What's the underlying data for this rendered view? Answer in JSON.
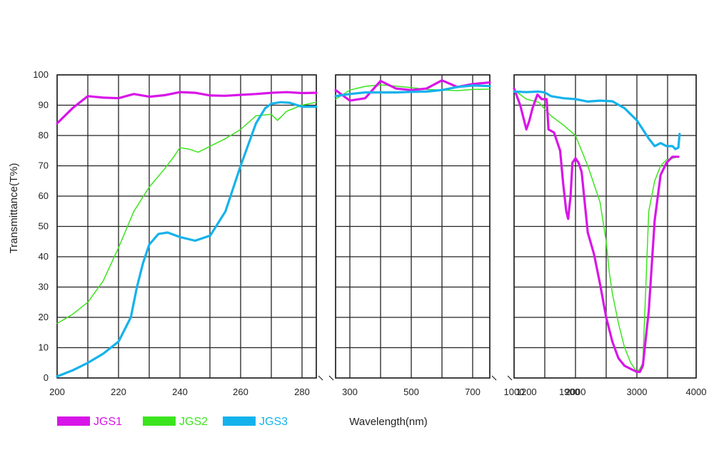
{
  "chart_data": {
    "type": "line",
    "title": "",
    "ylabel": "Transmittance(T%)",
    "xlabel": "Wavelength(nm)",
    "ylim": [
      0,
      100
    ],
    "y_ticks": [
      "0",
      "10",
      "20",
      "30",
      "40",
      "50",
      "60",
      "70",
      "80",
      "90",
      "100"
    ],
    "grid": true,
    "legend_position": "bottom-left",
    "panels": [
      {
        "xlim": [
          200,
          285
        ],
        "x_ticks": [
          200,
          220,
          240,
          260,
          280
        ],
        "x_tick_labels": [
          "200",
          "220",
          "240",
          "260",
          "280"
        ],
        "series": [
          {
            "name": "JGS1",
            "x": [
              200,
              205,
              210,
              215,
              220,
              225,
              230,
              235,
              240,
              245,
              250,
              255,
              260,
              265,
              270,
              275,
              280,
              285
            ],
            "y": [
              84,
              89,
              93,
              92.5,
              92.3,
              93.7,
              92.8,
              93.3,
              94.3,
              94.1,
              93.2,
              93.1,
              93.4,
              93.7,
              94.1,
              94.3,
              94,
              94.1
            ]
          },
          {
            "name": "JGS2",
            "x": [
              200,
              205,
              210,
              215,
              220,
              225,
              230,
              235,
              238,
              240,
              243,
              246,
              250,
              255,
              260,
              265,
              270,
              272,
              275,
              280,
              285
            ],
            "y": [
              18,
              21,
              25,
              32,
              43,
              55,
              63,
              69,
              73,
              76,
              75.5,
              74.5,
              76.5,
              79,
              82,
              86.5,
              87,
              85,
              88,
              90,
              91
            ]
          },
          {
            "name": "JGS3",
            "x": [
              200,
              205,
              210,
              215,
              220,
              224,
              226,
              228,
              230,
              233,
              236,
              240,
              245,
              250,
              255,
              260,
              265,
              268,
              270,
              273,
              276,
              280,
              285
            ],
            "y": [
              0.5,
              2.5,
              5,
              8,
              12,
              20,
              30,
              38,
              44,
              47.5,
              48,
              46.5,
              45.3,
              47,
              55,
              70,
              84,
              89,
              90.5,
              91,
              90.8,
              89.5,
              89.5
            ]
          }
        ]
      },
      {
        "xlim": [
          250,
          750
        ],
        "x_ticks": [
          300,
          500,
          700
        ],
        "x_tick_labels": [
          "300",
          "500",
          "700"
        ],
        "series": [
          {
            "name": "JGS1",
            "x": [
              250,
              300,
              350,
              400,
              450,
              500,
              550,
              600,
              650,
              700,
              750
            ],
            "y": [
              95,
              91.5,
              92.3,
              98,
              95.5,
              95,
              95.5,
              98.2,
              96,
              97,
              97.5
            ]
          },
          {
            "name": "JGS2",
            "x": [
              250,
              300,
              350,
              400,
              450,
              500,
              550,
              600,
              650,
              700,
              750
            ],
            "y": [
              92,
              95,
              96.2,
              96.7,
              96.3,
              95.8,
              95.2,
              95,
              94.8,
              95.2,
              95.3
            ]
          },
          {
            "name": "JGS3",
            "x": [
              250,
              300,
              350,
              400,
              450,
              500,
              550,
              600,
              650,
              700,
              750
            ],
            "y": [
              93,
              93.7,
              94.2,
              94.2,
              94.2,
              94.4,
              94.5,
              95,
              96,
              96.5,
              96.3
            ]
          }
        ]
      },
      {
        "xlim": [
          1000,
          4000
        ],
        "x_ticks": [
          1000,
          2000,
          3000,
          4000
        ],
        "x_tick_labels": [
          "1000",
          "2000",
          "3000",
          "4000"
        ],
        "minor_tick_labels": [
          {
            "x": 1200,
            "label": "1200"
          },
          {
            "x": 1900,
            "label": "1900"
          }
        ],
        "series": [
          {
            "name": "JGS1",
            "x": [
              1000,
              1100,
              1200,
              1250,
              1300,
              1380,
              1450,
              1530,
              1560,
              1650,
              1700,
              1750,
              1800,
              1850,
              1880,
              1920,
              1950,
              2000,
              2050,
              2100,
              2200,
              2300,
              2400,
              2500,
              2600,
              2700,
              2800,
              2900,
              3000,
              3050,
              3100,
              3200,
              3300,
              3400,
              3500,
              3600,
              3700
            ],
            "y": [
              95.5,
              90,
              82,
              85,
              89,
              93.5,
              92,
              92,
              82,
              81,
              78,
              75,
              64,
              55,
              52.5,
              60,
              71,
              72.5,
              71,
              68,
              48,
              41,
              31,
              20,
              12,
              6.5,
              4,
              3,
              2,
              2,
              4,
              22,
              52,
              67,
              71,
              73,
              73
            ]
          },
          {
            "name": "JGS2",
            "x": [
              1000,
              1200,
              1400,
              1600,
              1800,
              2000,
              2200,
              2400,
              2500,
              2550,
              2600,
              2700,
              2800,
              2900,
              3000,
              3050,
              3100,
              3150,
              3200,
              3300,
              3400,
              3500,
              3700
            ],
            "y": [
              95,
              92,
              91,
              86.5,
              83.5,
              80,
              70,
              58,
              45,
              35,
              28,
              18,
              10,
              5,
              2,
              3,
              5,
              30,
              55,
              65,
              70,
              72,
              73
            ]
          },
          {
            "name": "JGS3",
            "x": [
              1000,
              1200,
              1400,
              1500,
              1600,
              1800,
              2000,
              2200,
              2400,
              2600,
              2800,
              3000,
              3200,
              3300,
              3400,
              3500,
              3600,
              3650,
              3700,
              3720
            ],
            "y": [
              94.5,
              94.3,
              94.5,
              94.2,
              93,
              92.3,
              92,
              91.2,
              91.5,
              91.3,
              89,
              85,
              79,
              76.5,
              77.5,
              76.5,
              76.5,
              75.5,
              76,
              80.5
            ]
          }
        ]
      }
    ]
  },
  "legend": [
    {
      "label": "JGS1",
      "color": "#d815e8"
    },
    {
      "label": "JGS2",
      "color": "#3ce41e"
    },
    {
      "label": "JGS3",
      "color": "#14b2ec"
    }
  ],
  "colors": {
    "JGS1": "#d815e8",
    "JGS2": "#3ce41e",
    "JGS3": "#14b2ec"
  }
}
